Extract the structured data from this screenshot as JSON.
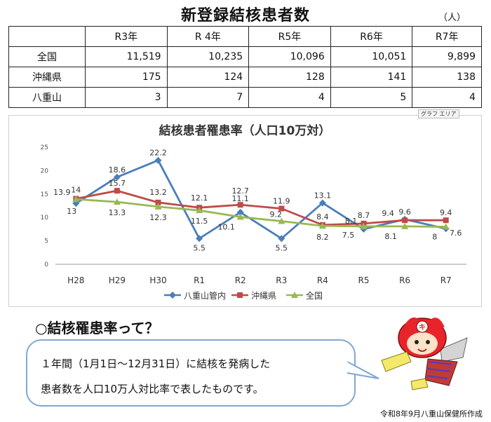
{
  "title": "新登録結核患者数",
  "unit": "（人）",
  "table": {
    "corner": "",
    "years": [
      "R3年",
      "R 4年",
      "R5年",
      "R6年",
      "R7年"
    ],
    "rows": [
      {
        "label": "全国",
        "values": [
          "11,519",
          "10,235",
          "10,096",
          "10,051",
          "9,899"
        ]
      },
      {
        "label": "沖縄県",
        "values": [
          "175",
          "124",
          "128",
          "141",
          "138"
        ]
      },
      {
        "label": "八重山",
        "values": [
          "3",
          "7",
          "4",
          "5",
          "4"
        ]
      }
    ]
  },
  "graph_area_tag": "グラフ エリア",
  "chart_data": {
    "type": "line",
    "title": "結核患者罹患率（人口10万対）",
    "categories": [
      "H28",
      "H29",
      "H30",
      "R1",
      "R2",
      "R3",
      "R4",
      "R5",
      "R6",
      "R7"
    ],
    "ylim": [
      0,
      25
    ],
    "yticks": [
      0,
      5,
      10,
      15,
      20,
      25
    ],
    "grid": false,
    "legend_position": "bottom",
    "series": [
      {
        "name": "八重山管内",
        "color": "#4a7ebb",
        "marker": "diamond",
        "values": [
          13,
          18.6,
          22.2,
          5.5,
          11.1,
          5.5,
          13.1,
          7.5,
          9.6,
          7.6
        ],
        "labels": [
          "13",
          "18.6",
          "22.2",
          "5.5",
          "11.1",
          "5.5",
          "13.1",
          "7.5",
          "9.6",
          "7.6"
        ]
      },
      {
        "name": "沖縄県",
        "color": "#be4b48",
        "marker": "square",
        "values": [
          14,
          15.7,
          13.2,
          12.1,
          12.7,
          11.9,
          8.4,
          8.7,
          9.4,
          9.4
        ],
        "labels": [
          "14",
          "15.7",
          "13.2",
          "12.1",
          "12.7",
          "11.9",
          "8.4",
          "8.7",
          "9.4",
          "9.4"
        ]
      },
      {
        "name": "全国",
        "color": "#98b954",
        "marker": "triangle",
        "values": [
          13.9,
          13.3,
          12.3,
          11.5,
          10.1,
          9.2,
          8.2,
          8.1,
          8.1,
          8
        ],
        "labels": [
          "13.9",
          "13.3",
          "12.3",
          "11.5",
          "10.1",
          "9.2",
          "8.2",
          "8.1",
          "8.1",
          "8"
        ]
      }
    ]
  },
  "question": {
    "heading": "○結核罹患率って？",
    "line1": "１年間（1月1日～12月31日）に結核を発病した",
    "line2": "患者数を人口10万人対比率で表したものです。"
  },
  "credit": "令和8年9月八重山保健所作成",
  "mascot": {
    "icon": "red-hooded-mascot-icon",
    "badge_text": "キ",
    "colors": {
      "hood": "#e8242a",
      "face": "#fbe2c8",
      "glove": "#f3e96b"
    }
  }
}
